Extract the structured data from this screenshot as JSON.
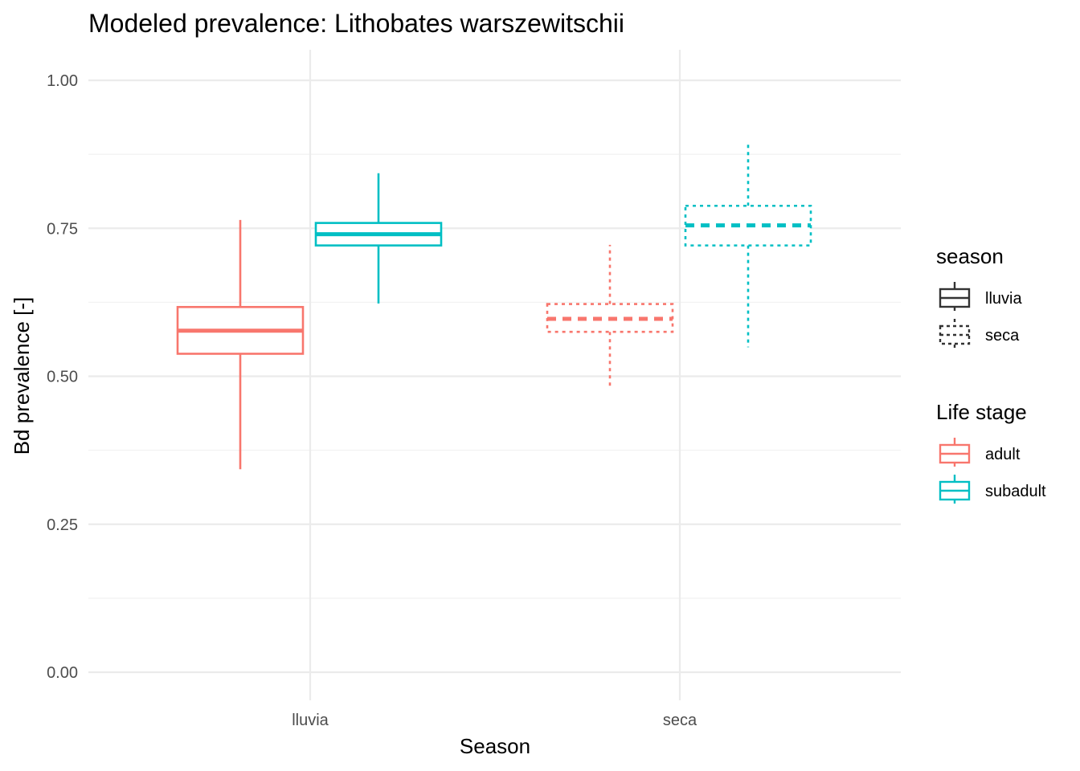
{
  "chart_data": {
    "type": "boxplot",
    "title": "Modeled prevalence: Lithobates warszewitschii",
    "xlabel": "Season",
    "ylabel": "Bd prevalence [-]",
    "ylim": [
      0,
      1
    ],
    "y_ticks": [
      "0.00",
      "0.25",
      "0.50",
      "0.75",
      "1.00"
    ],
    "y_tick_values": [
      0,
      0.25,
      0.5,
      0.75,
      1.0
    ],
    "categories": [
      "lluvia",
      "seca"
    ],
    "grid": true,
    "legend_position": "right",
    "legends": {
      "linetype": {
        "title": "season",
        "entries": [
          {
            "label": "lluvia",
            "linetype": "solid"
          },
          {
            "label": "seca",
            "linetype": "dotted"
          }
        ]
      },
      "color": {
        "title": "Life stage",
        "entries": [
          {
            "label": "adult",
            "color": "#F8766D"
          },
          {
            "label": "subadult",
            "color": "#00BFC4"
          }
        ]
      }
    },
    "boxes": [
      {
        "category": "lluvia",
        "group": "adult",
        "linetype": "solid",
        "color": "#F8766D",
        "min": 0.343,
        "q1": 0.538,
        "median": 0.577,
        "q3": 0.617,
        "max": 0.764
      },
      {
        "category": "lluvia",
        "group": "subadult",
        "linetype": "solid",
        "color": "#00BFC4",
        "min": 0.623,
        "q1": 0.721,
        "median": 0.74,
        "q3": 0.759,
        "max": 0.843
      },
      {
        "category": "seca",
        "group": "adult",
        "linetype": "dotted",
        "color": "#F8766D",
        "min": 0.478,
        "q1": 0.575,
        "median": 0.597,
        "q3": 0.622,
        "max": 0.722
      },
      {
        "category": "seca",
        "group": "subadult",
        "linetype": "dotted",
        "color": "#00BFC4",
        "min": 0.549,
        "q1": 0.721,
        "median": 0.755,
        "q3": 0.788,
        "max": 0.897
      }
    ]
  }
}
